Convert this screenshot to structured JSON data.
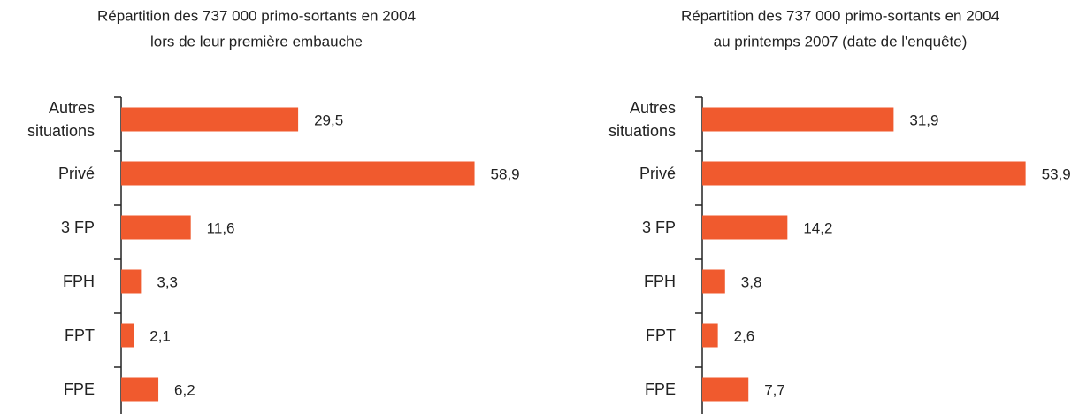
{
  "chart_data": [
    {
      "type": "bar",
      "orientation": "horizontal",
      "title": "Répartition des 737 000 primo-sortants en 2004",
      "subtitle": "lors de leur première embauche",
      "categories": [
        "Autres situations",
        "Privé",
        "3 FP",
        "FPH",
        "FPT",
        "FPE"
      ],
      "values": [
        29.5,
        58.9,
        11.6,
        3.3,
        2.1,
        6.2
      ],
      "value_labels": [
        "29,5",
        "58,9",
        "11,6",
        "3,3",
        "2,1",
        "6,2"
      ],
      "color": "#f05a2e",
      "xlim": [
        0,
        60
      ]
    },
    {
      "type": "bar",
      "orientation": "horizontal",
      "title": "Répartition des 737 000 primo-sortants en 2004",
      "subtitle": "au printemps 2007 (date de l'enquête)",
      "categories": [
        "Autres situations",
        "Privé",
        "3 FP",
        "FPH",
        "FPT",
        "FPE"
      ],
      "values": [
        31.9,
        53.9,
        14.2,
        3.8,
        2.6,
        7.7
      ],
      "value_labels": [
        "31,9",
        "53,9",
        "14,2",
        "3,8",
        "2,6",
        "7,7"
      ],
      "color": "#f05a2e",
      "xlim": [
        0,
        60
      ]
    }
  ]
}
